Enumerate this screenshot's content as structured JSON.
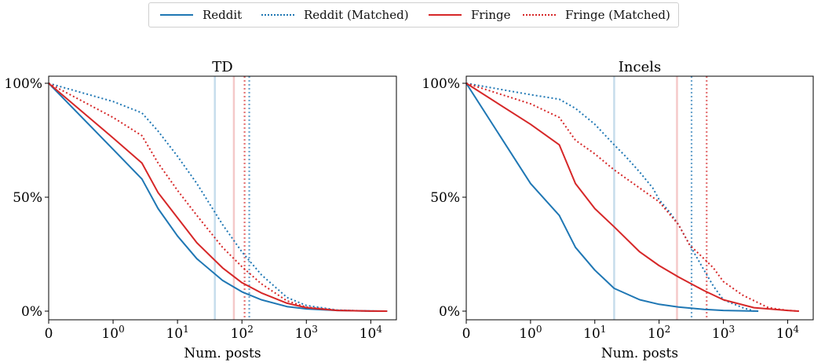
{
  "colors": {
    "reddit": "#1f77b4",
    "fringe": "#d62728",
    "axis": "#000000"
  },
  "legend": {
    "placement": "top-center",
    "items": [
      {
        "label": "Reddit",
        "color": "#1f77b4",
        "style": "solid"
      },
      {
        "label": "Reddit (Matched)",
        "color": "#1f77b4",
        "style": "dotted"
      },
      {
        "label": "Fringe",
        "color": "#d62728",
        "style": "solid"
      },
      {
        "label": "Fringe (Matched)",
        "color": "#d62728",
        "style": "dotted"
      }
    ]
  },
  "chart_data": [
    {
      "type": "line",
      "title": "TD",
      "xlabel": "Num. posts",
      "ylabel": "",
      "xscale": "symlog",
      "xlim": [
        0,
        25000
      ],
      "ylim": [
        0,
        100
      ],
      "xticks": [
        {
          "value": 0,
          "base": "0",
          "exp": ""
        },
        {
          "value": 1,
          "base": "10",
          "exp": "0"
        },
        {
          "value": 10,
          "base": "10",
          "exp": "1"
        },
        {
          "value": 100,
          "base": "10",
          "exp": "2"
        },
        {
          "value": 1000,
          "base": "10",
          "exp": "3"
        },
        {
          "value": 10000,
          "base": "10",
          "exp": "4"
        }
      ],
      "yticks": [
        {
          "value": 0,
          "label": "0%"
        },
        {
          "value": 50,
          "label": "50%"
        },
        {
          "value": 100,
          "label": "100%"
        }
      ],
      "vlines": [
        {
          "x": 38,
          "color": "#1f77b4",
          "style": "solid",
          "opacity": 0.25
        },
        {
          "x": 75,
          "color": "#d62728",
          "style": "solid",
          "opacity": 0.25
        },
        {
          "x": 110,
          "color": "#d62728",
          "style": "dotted",
          "opacity": 0.65
        },
        {
          "x": 130,
          "color": "#1f77b4",
          "style": "dotted",
          "opacity": 0.65
        }
      ],
      "series": [
        {
          "name": "Reddit",
          "color": "#1f77b4",
          "style": "solid",
          "x": [
            0,
            1,
            2.8,
            5,
            10,
            20,
            50,
            100,
            200,
            500,
            1000,
            3000,
            10000,
            18000
          ],
          "y": [
            100,
            71,
            58,
            45,
            33,
            23,
            13.5,
            8.5,
            5,
            2,
            1,
            0.3,
            0.05,
            0
          ]
        },
        {
          "name": "Reddit (Matched)",
          "color": "#1f77b4",
          "style": "dotted",
          "x": [
            0,
            1,
            2.8,
            5,
            10,
            20,
            50,
            100,
            200,
            500,
            1000,
            3000,
            10000,
            18000
          ],
          "y": [
            100,
            92,
            87,
            79,
            68,
            56,
            38,
            26,
            16,
            6,
            2.5,
            0.5,
            0.05,
            0
          ]
        },
        {
          "name": "Fringe",
          "color": "#d62728",
          "style": "solid",
          "x": [
            0,
            1,
            2.8,
            5,
            10,
            20,
            50,
            100,
            200,
            500,
            1000,
            3000,
            10000,
            18000
          ],
          "y": [
            100,
            76,
            65,
            52,
            41,
            30,
            19,
            12.5,
            8,
            3.5,
            1.5,
            0.3,
            0.05,
            0
          ]
        },
        {
          "name": "Fringe (Matched)",
          "color": "#d62728",
          "style": "dotted",
          "x": [
            0,
            1,
            2.8,
            5,
            10,
            20,
            50,
            100,
            200,
            500,
            1000,
            3000,
            10000,
            18000
          ],
          "y": [
            100,
            85,
            77,
            65,
            53,
            42,
            28,
            19.5,
            12,
            4.5,
            1.8,
            0.4,
            0.05,
            0
          ]
        }
      ]
    },
    {
      "type": "line",
      "title": "Incels",
      "xlabel": "Num. posts",
      "ylabel": "",
      "xscale": "symlog",
      "xlim": [
        0,
        25000
      ],
      "ylim": [
        0,
        100
      ],
      "xticks": [
        {
          "value": 0,
          "base": "0",
          "exp": ""
        },
        {
          "value": 1,
          "base": "10",
          "exp": "0"
        },
        {
          "value": 10,
          "base": "10",
          "exp": "1"
        },
        {
          "value": 100,
          "base": "10",
          "exp": "2"
        },
        {
          "value": 1000,
          "base": "10",
          "exp": "3"
        },
        {
          "value": 10000,
          "base": "10",
          "exp": "4"
        }
      ],
      "yticks": [
        {
          "value": 0,
          "label": "0%"
        },
        {
          "value": 50,
          "label": "50%"
        },
        {
          "value": 100,
          "label": "100%"
        }
      ],
      "vlines": [
        {
          "x": 20,
          "color": "#1f77b4",
          "style": "solid",
          "opacity": 0.25
        },
        {
          "x": 190,
          "color": "#d62728",
          "style": "solid",
          "opacity": 0.25
        },
        {
          "x": 320,
          "color": "#1f77b4",
          "style": "dotted",
          "opacity": 0.65
        },
        {
          "x": 550,
          "color": "#d62728",
          "style": "dotted",
          "opacity": 0.65
        }
      ],
      "series": [
        {
          "name": "Reddit",
          "color": "#1f77b4",
          "style": "solid",
          "x": [
            0,
            1,
            2.8,
            5,
            10,
            20,
            50,
            100,
            200,
            500,
            1000,
            3500
          ],
          "y": [
            100,
            56,
            42,
            28,
            18,
            10,
            5,
            3,
            1.8,
            0.8,
            0.3,
            0
          ]
        },
        {
          "name": "Reddit (Matched)",
          "color": "#1f77b4",
          "style": "dotted",
          "x": [
            0,
            1,
            2.8,
            5,
            10,
            20,
            30,
            50,
            80,
            100,
            150,
            200,
            300,
            500,
            700,
            1000,
            2000,
            3000
          ],
          "y": [
            100,
            95,
            93,
            89,
            82,
            73,
            68,
            61,
            54,
            49,
            43,
            38,
            29,
            18,
            11,
            5,
            1.5,
            0
          ]
        },
        {
          "name": "Fringe",
          "color": "#d62728",
          "style": "solid",
          "x": [
            0,
            1,
            2.8,
            5,
            10,
            20,
            50,
            100,
            200,
            500,
            1000,
            3000,
            10000,
            15000
          ],
          "y": [
            100,
            82,
            73,
            56,
            45,
            37,
            26,
            20,
            15,
            9,
            5,
            1.5,
            0.3,
            0
          ]
        },
        {
          "name": "Fringe (Matched)",
          "color": "#d62728",
          "style": "dotted",
          "x": [
            0,
            1,
            2.8,
            5,
            10,
            20,
            50,
            100,
            200,
            300,
            500,
            700,
            1000,
            2000,
            5000,
            10000,
            15000
          ],
          "y": [
            100,
            91,
            85,
            75,
            69,
            62,
            54,
            48,
            38,
            29,
            23,
            19,
            13,
            7,
            1.5,
            0.3,
            0
          ]
        }
      ]
    }
  ]
}
